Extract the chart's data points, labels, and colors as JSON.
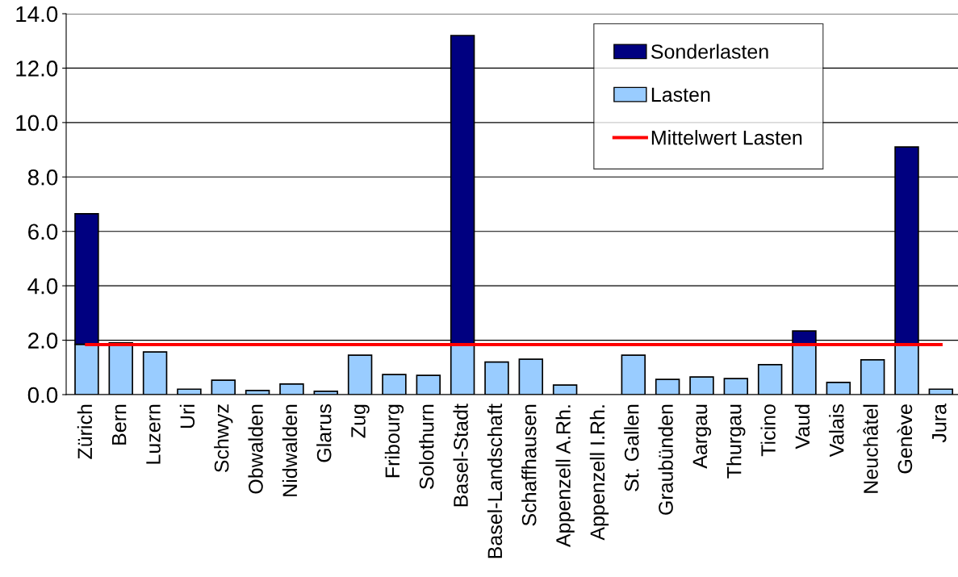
{
  "chart_data": {
    "type": "bar",
    "stacked": true,
    "categories": [
      "Zürich",
      "Bern",
      "Luzern",
      "Uri",
      "Schwyz",
      "Obwalden",
      "Nidwalden",
      "Glarus",
      "Zug",
      "Fribourg",
      "Solothurn",
      "Basel-Stadt",
      "Basel-Landschaft",
      "Schaffhausen",
      "Appenzell A.Rh.",
      "Appenzell I.Rh.",
      "St. Gallen",
      "Graubünden",
      "Aargau",
      "Thurgau",
      "Ticino",
      "Vaud",
      "Valais",
      "Neuchâtel",
      "Genève",
      "Jura"
    ],
    "series": [
      {
        "name": "Lasten",
        "color": "#99ccff",
        "values": [
          1.85,
          1.9,
          1.57,
          0.2,
          0.53,
          0.15,
          0.39,
          0.12,
          1.45,
          0.74,
          0.71,
          1.85,
          1.2,
          1.3,
          0.35,
          null,
          1.45,
          0.56,
          0.65,
          0.59,
          1.1,
          1.85,
          0.45,
          1.28,
          1.85,
          0.2
        ]
      },
      {
        "name": "Sonderlasten",
        "color": "#000080",
        "values": [
          4.8,
          null,
          null,
          null,
          null,
          null,
          null,
          null,
          null,
          null,
          null,
          11.35,
          null,
          null,
          null,
          null,
          null,
          null,
          null,
          null,
          null,
          0.49,
          null,
          null,
          7.25,
          null
        ]
      },
      {
        "name": "Mittelwert Lasten",
        "type": "line",
        "color": "#ff0000",
        "values": [
          1.84,
          1.84,
          1.84,
          1.84,
          1.84,
          1.84,
          1.84,
          1.84,
          1.84,
          1.84,
          1.84,
          1.84,
          1.84,
          1.84,
          1.84,
          1.84,
          1.84,
          1.84,
          1.84,
          1.84,
          1.84,
          1.84,
          1.84,
          1.84,
          1.84,
          1.84
        ]
      }
    ],
    "ylim": [
      0,
      14
    ],
    "yticks": [
      {
        "value": 0,
        "label": "0.0"
      },
      {
        "value": 2,
        "label": "2.0"
      },
      {
        "value": 4,
        "label": "4.0"
      },
      {
        "value": 6,
        "label": "6.0"
      },
      {
        "value": 8,
        "label": "8.0"
      },
      {
        "value": 10,
        "label": "10.0"
      },
      {
        "value": 12,
        "label": "12.0"
      },
      {
        "value": 14,
        "label": "14.0"
      }
    ],
    "grid": "y",
    "legend": "top right",
    "marker": "none",
    "line_style": "solid"
  }
}
